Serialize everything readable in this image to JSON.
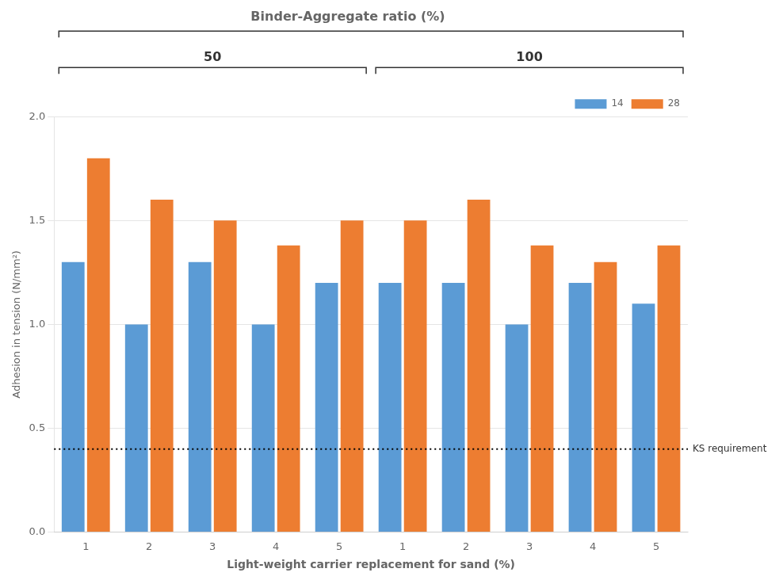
{
  "chart_data": {
    "type": "bar",
    "title": "Binder-Aggregate ratio (%)",
    "xlabel": "Light-weight carrier replacement for sand (%)",
    "ylabel": "Adhesion in tension (N/mm²)",
    "groups": [
      "50",
      "100"
    ],
    "categories": [
      "1",
      "2",
      "3",
      "4",
      "5",
      "1",
      "2",
      "3",
      "4",
      "5"
    ],
    "series": [
      {
        "name": "14",
        "color": "#5B9BD5",
        "values": [
          1.3,
          1.0,
          1.3,
          1.0,
          1.2,
          1.2,
          1.2,
          1.0,
          1.2,
          1.1
        ]
      },
      {
        "name": "28",
        "color": "#ED7D31",
        "values": [
          1.8,
          1.6,
          1.5,
          1.38,
          1.5,
          1.5,
          1.6,
          1.38,
          1.3,
          1.38
        ]
      }
    ],
    "annotations": [
      {
        "y": 0.4,
        "text": "KS requirement"
      }
    ],
    "ylim": [
      0,
      2.0
    ],
    "yticks": [
      {
        "value": 0,
        "label": "0.0"
      },
      0.5,
      {
        "value": 1.0,
        "label": "1.0"
      },
      1.5,
      {
        "value": 2.0,
        "label": "2.0"
      }
    ],
    "grid": true,
    "legend": "upper right"
  }
}
